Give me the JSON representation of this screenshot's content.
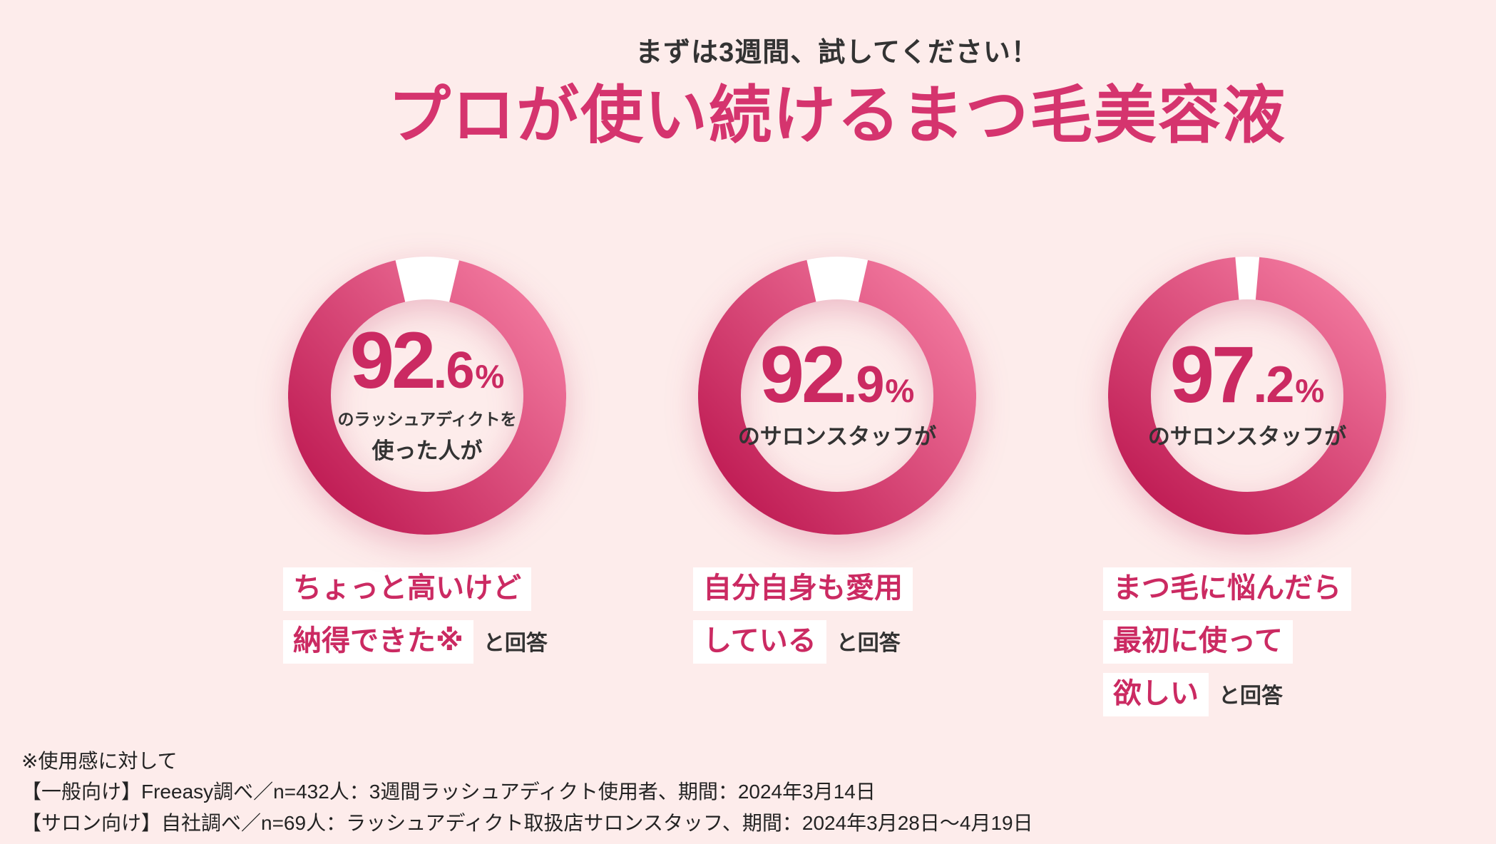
{
  "page": {
    "colors": {
      "background": "#fdeceb",
      "accent": "#cb2a62",
      "title_pink": "#d5346e",
      "text_dark": "#333333",
      "highlight_box": "#ffffff",
      "ring_gradient": [
        "#c01d55",
        "#f1779d"
      ],
      "ring_gap": "#ffffff"
    }
  },
  "header": {
    "subtitle": "まずは3週間、試してください！",
    "title": "プロが使い続けるまつ毛美容液"
  },
  "chart_data": [
    {
      "type": "pie",
      "style": "donut",
      "unit": "%",
      "value": 92.6,
      "remainder": 7.4,
      "center_label_small": "のラッシュアディクトを",
      "center_label_main": "使った人が",
      "caption_lines": [
        "ちょっと高いけど",
        "納得できた※"
      ],
      "caption_suffix": "と回答"
    },
    {
      "type": "pie",
      "style": "donut",
      "unit": "%",
      "value": 92.9,
      "remainder": 7.1,
      "center_label_small": "",
      "center_label_main": "のサロンスタッフが",
      "caption_lines": [
        "自分自身も愛用",
        "している"
      ],
      "caption_suffix": "と回答"
    },
    {
      "type": "pie",
      "style": "donut",
      "unit": "%",
      "value": 97.2,
      "remainder": 2.8,
      "center_label_small": "",
      "center_label_main": "のサロンスタッフが",
      "caption_lines": [
        "まつ毛に悩んだら",
        "最初に使って",
        "欲しい"
      ],
      "caption_suffix": "と回答"
    }
  ],
  "footnotes": [
    "※使用感に対して",
    "【一般向け】Freeasy調べ／n=432人：3週間ラッシュアディクト使用者、期間：2024年3月14日",
    "【サロン向け】自社調べ／n=69人：ラッシュアディクト取扱店サロンスタッフ、期間：2024年3月28日〜4月19日"
  ]
}
